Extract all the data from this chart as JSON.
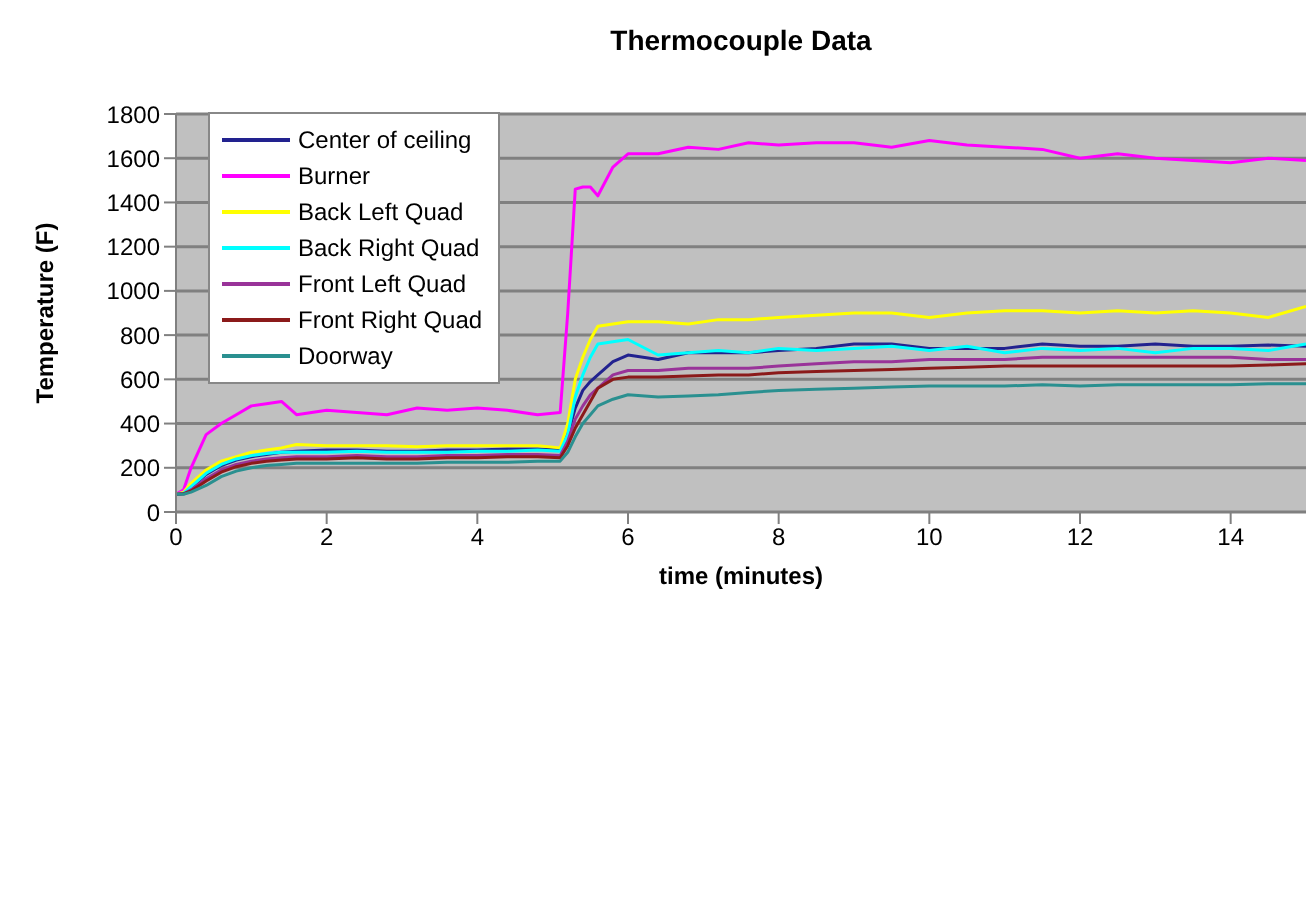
{
  "chart_data": {
    "type": "line",
    "title": "Thermocouple Data",
    "xlabel": "time (minutes)",
    "ylabel": "Temperature (F)",
    "x": [
      0,
      0.1,
      0.2,
      0.4,
      0.6,
      0.8,
      1,
      1.2,
      1.4,
      1.6,
      2,
      2.4,
      2.8,
      3.2,
      3.6,
      4,
      4.4,
      4.8,
      5.1,
      5.2,
      5.3,
      5.4,
      5.5,
      5.6,
      5.8,
      6,
      6.4,
      6.8,
      7.2,
      7.6,
      8,
      8.5,
      9,
      9.5,
      10,
      10.5,
      11,
      11.5,
      12,
      12.5,
      13,
      13.5,
      14,
      14.5,
      15
    ],
    "xlim": [
      0,
      15
    ],
    "xticks": [
      0,
      2,
      4,
      6,
      8,
      10,
      12,
      14
    ],
    "ylim": [
      0,
      1800
    ],
    "yticks": [
      0,
      200,
      400,
      600,
      800,
      1000,
      1200,
      1400,
      1600,
      1800
    ],
    "grid": "y",
    "legend": "top left",
    "marker": "none",
    "line_style": "solid",
    "series": [
      {
        "name": "Center of ceiling",
        "color": "#22228f",
        "values": [
          80,
          85,
          110,
          170,
          210,
          235,
          250,
          260,
          270,
          275,
          280,
          280,
          275,
          275,
          280,
          280,
          285,
          285,
          280,
          350,
          470,
          550,
          590,
          620,
          680,
          710,
          690,
          720,
          720,
          720,
          730,
          740,
          760,
          760,
          740,
          740,
          740,
          760,
          750,
          750,
          760,
          750,
          750,
          755,
          750
        ]
      },
      {
        "name": "Burner",
        "color": "#ff00ff",
        "values": [
          80,
          100,
          200,
          350,
          400,
          440,
          480,
          490,
          500,
          440,
          460,
          450,
          440,
          470,
          460,
          470,
          460,
          440,
          450,
          900,
          1460,
          1470,
          1470,
          1430,
          1560,
          1620,
          1620,
          1650,
          1640,
          1670,
          1660,
          1670,
          1670,
          1650,
          1680,
          1660,
          1650,
          1640,
          1600,
          1620,
          1600,
          1590,
          1580,
          1600,
          1590
        ]
      },
      {
        "name": "Back Left Quad",
        "color": "#ffff00",
        "values": [
          80,
          90,
          130,
          190,
          230,
          250,
          270,
          280,
          290,
          305,
          300,
          300,
          300,
          295,
          300,
          300,
          300,
          300,
          290,
          400,
          600,
          700,
          780,
          840,
          850,
          860,
          860,
          850,
          870,
          870,
          880,
          890,
          900,
          900,
          880,
          900,
          910,
          910,
          900,
          910,
          900,
          910,
          900,
          880,
          930
        ]
      },
      {
        "name": "Back Right Quad",
        "color": "#00ffff",
        "values": [
          80,
          85,
          115,
          175,
          215,
          240,
          255,
          265,
          270,
          270,
          270,
          275,
          270,
          270,
          270,
          275,
          275,
          280,
          275,
          350,
          520,
          620,
          700,
          760,
          770,
          780,
          710,
          720,
          730,
          720,
          740,
          730,
          740,
          750,
          730,
          750,
          720,
          740,
          730,
          740,
          720,
          740,
          740,
          730,
          760
        ]
      },
      {
        "name": "Front Left Quad",
        "color": "#993399",
        "values": [
          80,
          82,
          100,
          150,
          190,
          215,
          230,
          240,
          245,
          250,
          250,
          255,
          250,
          250,
          255,
          255,
          260,
          260,
          255,
          320,
          420,
          480,
          530,
          560,
          620,
          640,
          640,
          650,
          650,
          650,
          660,
          670,
          680,
          680,
          690,
          690,
          690,
          700,
          700,
          700,
          700,
          700,
          700,
          690,
          690
        ]
      },
      {
        "name": "Front Right Quad",
        "color": "#8b1a1a",
        "values": [
          80,
          82,
          95,
          140,
          180,
          205,
          220,
          230,
          235,
          240,
          240,
          245,
          240,
          240,
          245,
          245,
          250,
          250,
          245,
          300,
          380,
          440,
          500,
          560,
          600,
          610,
          610,
          615,
          620,
          620,
          630,
          635,
          640,
          645,
          650,
          655,
          660,
          660,
          660,
          660,
          660,
          660,
          660,
          665,
          670
        ]
      },
      {
        "name": "Doorway",
        "color": "#2a9090",
        "values": [
          80,
          80,
          90,
          120,
          160,
          185,
          200,
          210,
          215,
          220,
          220,
          220,
          220,
          220,
          225,
          225,
          225,
          230,
          230,
          270,
          340,
          400,
          440,
          480,
          510,
          530,
          520,
          525,
          530,
          540,
          550,
          555,
          560,
          565,
          570,
          570,
          570,
          575,
          570,
          575,
          575,
          575,
          575,
          580,
          580
        ]
      }
    ]
  }
}
